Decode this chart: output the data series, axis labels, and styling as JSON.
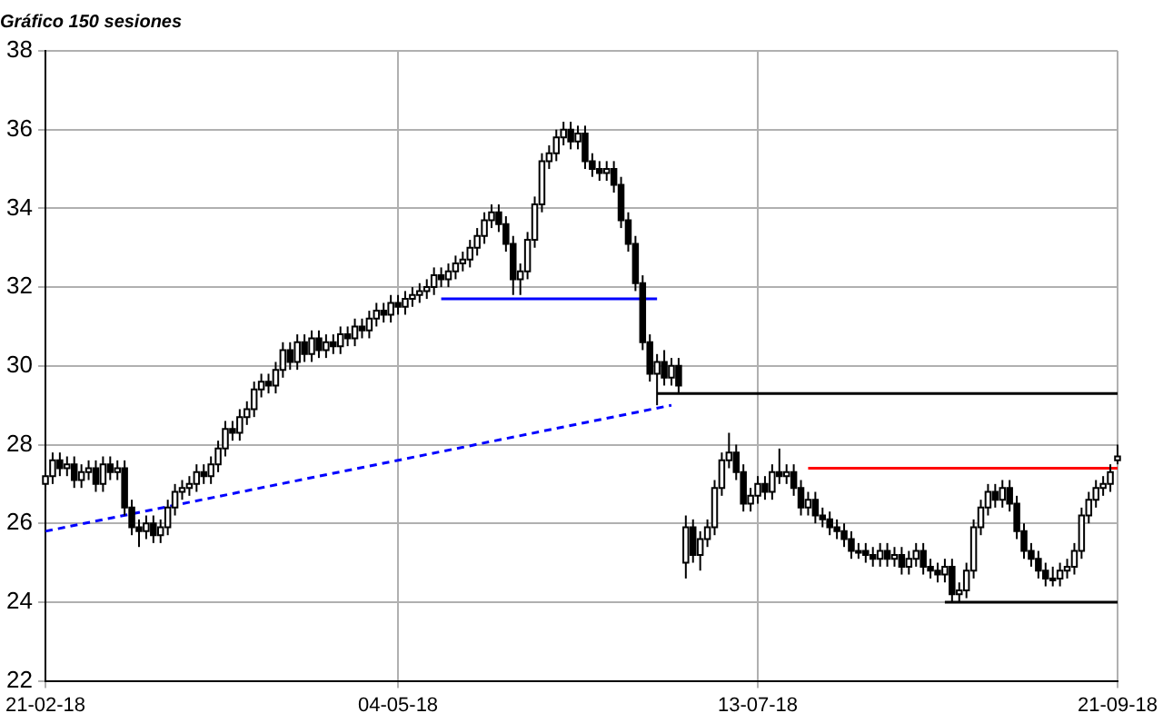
{
  "chart_data": {
    "type": "candlestick",
    "title": "Gráfico 150 sesiones",
    "categories": [
      "21-02-18",
      null,
      null,
      null,
      null,
      null,
      null,
      null,
      null,
      null,
      null,
      null,
      null,
      null,
      null,
      null,
      null,
      null,
      null,
      null,
      null,
      null,
      null,
      null,
      null,
      null,
      null,
      null,
      null,
      null,
      null,
      null,
      null,
      null,
      null,
      null,
      null,
      null,
      null,
      null,
      null,
      null,
      null,
      null,
      null,
      null,
      null,
      null,
      null,
      "04-05-18",
      null,
      null,
      null,
      null,
      null,
      null,
      null,
      null,
      null,
      null,
      null,
      null,
      null,
      null,
      null,
      null,
      null,
      null,
      null,
      null,
      null,
      null,
      null,
      null,
      null,
      null,
      null,
      null,
      null,
      null,
      null,
      null,
      null,
      null,
      null,
      null,
      null,
      null,
      null,
      null,
      null,
      null,
      null,
      null,
      null,
      null,
      null,
      null,
      null,
      "13-07-18",
      null,
      null,
      null,
      null,
      null,
      null,
      null,
      null,
      null,
      null,
      null,
      null,
      null,
      null,
      null,
      null,
      null,
      null,
      null,
      null,
      null,
      null,
      null,
      null,
      null,
      null,
      null,
      null,
      null,
      null,
      null,
      null,
      null,
      null,
      null,
      null,
      null,
      null,
      null,
      null,
      null,
      null,
      null,
      null,
      null,
      null,
      null,
      null,
      null,
      "21-09-18"
    ],
    "ohlc": [
      [
        27.0,
        27.4,
        26.8,
        27.2
      ],
      [
        27.2,
        27.8,
        27.0,
        27.6
      ],
      [
        27.6,
        27.8,
        27.2,
        27.4
      ],
      [
        27.4,
        27.7,
        27.2,
        27.5
      ],
      [
        27.5,
        27.7,
        26.9,
        27.1
      ],
      [
        27.1,
        27.5,
        26.9,
        27.3
      ],
      [
        27.3,
        27.6,
        27.1,
        27.4
      ],
      [
        27.4,
        27.6,
        26.8,
        27.0
      ],
      [
        27.0,
        27.7,
        26.8,
        27.5
      ],
      [
        27.5,
        27.7,
        27.1,
        27.3
      ],
      [
        27.3,
        27.6,
        27.1,
        27.4
      ],
      [
        27.4,
        27.6,
        26.2,
        26.4
      ],
      [
        26.4,
        26.6,
        25.7,
        25.9
      ],
      [
        25.9,
        26.1,
        25.4,
        25.8
      ],
      [
        25.8,
        26.2,
        25.6,
        26.0
      ],
      [
        26.0,
        26.2,
        25.5,
        25.7
      ],
      [
        25.7,
        26.1,
        25.5,
        25.9
      ],
      [
        25.9,
        26.6,
        25.7,
        26.4
      ],
      [
        26.4,
        27.0,
        26.2,
        26.8
      ],
      [
        26.8,
        27.1,
        26.6,
        26.9
      ],
      [
        26.9,
        27.2,
        26.7,
        27.0
      ],
      [
        27.0,
        27.5,
        26.8,
        27.3
      ],
      [
        27.3,
        27.5,
        27.0,
        27.2
      ],
      [
        27.2,
        27.7,
        27.0,
        27.5
      ],
      [
        27.5,
        28.1,
        27.3,
        27.9
      ],
      [
        27.9,
        28.6,
        27.7,
        28.4
      ],
      [
        28.4,
        28.6,
        28.1,
        28.3
      ],
      [
        28.3,
        28.9,
        28.1,
        28.7
      ],
      [
        28.7,
        29.1,
        28.5,
        28.9
      ],
      [
        28.9,
        29.6,
        28.7,
        29.4
      ],
      [
        29.4,
        29.8,
        29.2,
        29.6
      ],
      [
        29.6,
        29.8,
        29.3,
        29.5
      ],
      [
        29.5,
        30.1,
        29.3,
        29.9
      ],
      [
        29.9,
        30.6,
        29.7,
        30.4
      ],
      [
        30.4,
        30.6,
        29.9,
        30.1
      ],
      [
        30.1,
        30.8,
        29.9,
        30.6
      ],
      [
        30.6,
        30.8,
        30.1,
        30.3
      ],
      [
        30.3,
        30.9,
        30.1,
        30.7
      ],
      [
        30.7,
        30.9,
        30.2,
        30.4
      ],
      [
        30.4,
        30.8,
        30.2,
        30.6
      ],
      [
        30.6,
        30.8,
        30.3,
        30.5
      ],
      [
        30.5,
        31.0,
        30.3,
        30.8
      ],
      [
        30.8,
        31.0,
        30.5,
        30.7
      ],
      [
        30.7,
        31.2,
        30.5,
        31.0
      ],
      [
        31.0,
        31.2,
        30.7,
        30.9
      ],
      [
        30.9,
        31.4,
        30.7,
        31.2
      ],
      [
        31.2,
        31.6,
        31.0,
        31.4
      ],
      [
        31.4,
        31.6,
        31.1,
        31.3
      ],
      [
        31.3,
        31.8,
        31.1,
        31.6
      ],
      [
        31.6,
        31.8,
        31.3,
        31.5
      ],
      [
        31.5,
        31.9,
        31.3,
        31.7
      ],
      [
        31.7,
        32.0,
        31.5,
        31.8
      ],
      [
        31.8,
        32.1,
        31.6,
        31.9
      ],
      [
        31.9,
        32.2,
        31.7,
        32.0
      ],
      [
        32.0,
        32.5,
        31.8,
        32.3
      ],
      [
        32.3,
        32.5,
        32.0,
        32.2
      ],
      [
        32.2,
        32.6,
        32.0,
        32.4
      ],
      [
        32.4,
        32.8,
        32.2,
        32.6
      ],
      [
        32.6,
        32.9,
        32.4,
        32.7
      ],
      [
        32.7,
        33.2,
        32.5,
        33.0
      ],
      [
        33.0,
        33.5,
        32.8,
        33.3
      ],
      [
        33.3,
        33.9,
        33.1,
        33.7
      ],
      [
        33.7,
        34.1,
        33.5,
        33.9
      ],
      [
        33.9,
        34.1,
        33.4,
        33.6
      ],
      [
        33.6,
        33.8,
        32.9,
        33.1
      ],
      [
        33.1,
        33.3,
        31.8,
        32.2
      ],
      [
        32.2,
        32.6,
        31.8,
        32.4
      ],
      [
        32.4,
        33.4,
        32.2,
        33.2
      ],
      [
        33.2,
        34.3,
        33.0,
        34.1
      ],
      [
        34.1,
        35.4,
        33.9,
        35.2
      ],
      [
        35.2,
        35.6,
        35.0,
        35.4
      ],
      [
        35.4,
        36.0,
        35.2,
        35.8
      ],
      [
        35.8,
        36.2,
        35.6,
        36.0
      ],
      [
        36.0,
        36.2,
        35.5,
        35.7
      ],
      [
        35.7,
        36.1,
        35.5,
        35.9
      ],
      [
        35.9,
        36.1,
        35.0,
        35.2
      ],
      [
        35.2,
        35.4,
        34.8,
        35.0
      ],
      [
        35.0,
        35.2,
        34.7,
        34.9
      ],
      [
        34.9,
        35.2,
        34.7,
        35.0
      ],
      [
        35.0,
        35.2,
        34.4,
        34.6
      ],
      [
        34.6,
        34.8,
        33.5,
        33.7
      ],
      [
        33.7,
        33.9,
        32.9,
        33.1
      ],
      [
        33.1,
        33.3,
        31.9,
        32.1
      ],
      [
        32.1,
        32.3,
        30.4,
        30.6
      ],
      [
        30.6,
        30.8,
        29.6,
        29.8
      ],
      [
        29.8,
        30.3,
        29.0,
        30.1
      ],
      [
        30.1,
        30.4,
        29.5,
        29.7
      ],
      [
        29.7,
        30.2,
        29.5,
        30.0
      ],
      [
        30.0,
        30.2,
        29.3,
        29.5
      ],
      [
        25.0,
        26.2,
        24.6,
        25.9
      ],
      [
        25.9,
        26.1,
        25.0,
        25.2
      ],
      [
        25.2,
        25.8,
        24.8,
        25.6
      ],
      [
        25.6,
        26.1,
        25.4,
        25.9
      ],
      [
        25.9,
        27.1,
        25.7,
        26.9
      ],
      [
        26.9,
        27.8,
        26.7,
        27.6
      ],
      [
        27.6,
        28.3,
        27.4,
        27.8
      ],
      [
        27.8,
        28.0,
        27.1,
        27.3
      ],
      [
        27.3,
        27.5,
        26.3,
        26.5
      ],
      [
        26.5,
        26.9,
        26.3,
        26.7
      ],
      [
        26.7,
        27.2,
        26.5,
        27.0
      ],
      [
        27.0,
        27.2,
        26.6,
        26.8
      ],
      [
        26.8,
        27.5,
        26.6,
        27.3
      ],
      [
        27.3,
        27.9,
        27.0,
        27.2
      ],
      [
        27.2,
        27.5,
        27.0,
        27.3
      ],
      [
        27.3,
        27.5,
        26.7,
        26.9
      ],
      [
        26.9,
        27.1,
        26.2,
        26.4
      ],
      [
        26.4,
        26.8,
        26.2,
        26.6
      ],
      [
        26.6,
        26.8,
        26.0,
        26.2
      ],
      [
        26.2,
        26.4,
        25.9,
        26.1
      ],
      [
        26.1,
        26.3,
        25.7,
        25.9
      ],
      [
        25.9,
        26.1,
        25.6,
        25.8
      ],
      [
        25.8,
        26.0,
        25.4,
        25.6
      ],
      [
        25.6,
        25.8,
        25.1,
        25.3
      ],
      [
        25.3,
        25.5,
        25.1,
        25.3
      ],
      [
        25.3,
        25.5,
        25.0,
        25.2
      ],
      [
        25.2,
        25.4,
        24.9,
        25.1
      ],
      [
        25.1,
        25.5,
        24.9,
        25.3
      ],
      [
        25.3,
        25.5,
        24.9,
        25.1
      ],
      [
        25.1,
        25.4,
        24.9,
        25.2
      ],
      [
        25.2,
        25.4,
        24.7,
        24.9
      ],
      [
        24.9,
        25.3,
        24.7,
        25.1
      ],
      [
        25.1,
        25.5,
        24.9,
        25.3
      ],
      [
        25.3,
        25.5,
        24.7,
        24.9
      ],
      [
        24.9,
        25.1,
        24.6,
        24.8
      ],
      [
        24.8,
        25.0,
        24.5,
        24.7
      ],
      [
        24.7,
        25.1,
        24.5,
        24.9
      ],
      [
        24.9,
        25.1,
        24.0,
        24.2
      ],
      [
        24.2,
        24.5,
        24.0,
        24.3
      ],
      [
        24.3,
        25.0,
        24.1,
        24.8
      ],
      [
        24.8,
        26.1,
        24.6,
        25.9
      ],
      [
        25.9,
        26.6,
        25.7,
        26.4
      ],
      [
        26.4,
        27.0,
        26.2,
        26.8
      ],
      [
        26.8,
        27.0,
        26.4,
        26.6
      ],
      [
        26.6,
        27.1,
        26.4,
        26.9
      ],
      [
        26.9,
        27.1,
        26.3,
        26.5
      ],
      [
        26.5,
        26.7,
        25.6,
        25.8
      ],
      [
        25.8,
        26.0,
        25.1,
        25.3
      ],
      [
        25.3,
        25.5,
        24.9,
        25.1
      ],
      [
        25.1,
        25.3,
        24.6,
        24.8
      ],
      [
        24.8,
        25.0,
        24.4,
        24.6
      ],
      [
        24.6,
        24.9,
        24.4,
        24.6
      ],
      [
        24.6,
        25.0,
        24.4,
        24.8
      ],
      [
        24.8,
        25.1,
        24.6,
        24.9
      ],
      [
        24.9,
        25.5,
        24.7,
        25.3
      ],
      [
        25.3,
        26.4,
        25.1,
        26.2
      ],
      [
        26.2,
        26.8,
        26.0,
        26.6
      ],
      [
        26.6,
        27.1,
        26.4,
        26.9
      ],
      [
        26.9,
        27.2,
        26.7,
        27.0
      ],
      [
        27.0,
        27.5,
        26.8,
        27.3
      ],
      [
        27.6,
        28.0,
        27.5,
        27.7
      ]
    ],
    "series": [
      {
        "type": "line",
        "color": "#0000ff",
        "line_style": "solid",
        "values": [
          null,
          null,
          null,
          null,
          null,
          null,
          null,
          null,
          null,
          null,
          null,
          null,
          null,
          null,
          null,
          null,
          null,
          null,
          null,
          null,
          null,
          null,
          null,
          null,
          null,
          null,
          null,
          null,
          null,
          null,
          null,
          null,
          null,
          null,
          null,
          null,
          null,
          null,
          null,
          null,
          null,
          null,
          null,
          null,
          null,
          null,
          null,
          null,
          null,
          null,
          null,
          null,
          null,
          null,
          null,
          31.7,
          null,
          null,
          null,
          null,
          null,
          null,
          null,
          null,
          null,
          null,
          null,
          null,
          null,
          null,
          null,
          null,
          null,
          null,
          null,
          null,
          null,
          null,
          null,
          null,
          null,
          null,
          null,
          null,
          null,
          31.7,
          null,
          null,
          null,
          null,
          null,
          null,
          null,
          null,
          null,
          null,
          null,
          null,
          null,
          null,
          null,
          null,
          null,
          null,
          null,
          null,
          null,
          null,
          null,
          null,
          null,
          null,
          null,
          null,
          null,
          null,
          null,
          null,
          null,
          null,
          null,
          null,
          null,
          null,
          null,
          null,
          null,
          null,
          null,
          null,
          null,
          null,
          null,
          null,
          null,
          null,
          null,
          null,
          null,
          null,
          null,
          null,
          null,
          null,
          null,
          null,
          null,
          null,
          null,
          null
        ]
      },
      {
        "type": "line",
        "color": "#000000",
        "line_style": "solid",
        "values": [
          null,
          null,
          null,
          null,
          null,
          null,
          null,
          null,
          null,
          null,
          null,
          null,
          null,
          null,
          null,
          null,
          null,
          null,
          null,
          null,
          null,
          null,
          null,
          null,
          null,
          null,
          null,
          null,
          null,
          null,
          null,
          null,
          null,
          null,
          null,
          null,
          null,
          null,
          null,
          null,
          null,
          null,
          null,
          null,
          null,
          null,
          null,
          null,
          null,
          null,
          null,
          null,
          null,
          null,
          null,
          null,
          null,
          null,
          null,
          null,
          null,
          null,
          null,
          null,
          null,
          null,
          null,
          null,
          null,
          null,
          null,
          null,
          null,
          null,
          null,
          null,
          null,
          null,
          null,
          null,
          null,
          null,
          null,
          null,
          null,
          29.3,
          null,
          null,
          null,
          null,
          null,
          null,
          null,
          null,
          null,
          null,
          null,
          null,
          null,
          null,
          null,
          null,
          null,
          null,
          null,
          null,
          null,
          null,
          null,
          null,
          null,
          null,
          null,
          null,
          null,
          null,
          null,
          null,
          null,
          null,
          null,
          null,
          null,
          null,
          null,
          null,
          null,
          null,
          null,
          null,
          null,
          null,
          null,
          null,
          null,
          null,
          null,
          null,
          null,
          null,
          null,
          null,
          null,
          null,
          null,
          null,
          null,
          null,
          null,
          29.3
        ]
      },
      {
        "type": "line",
        "color": "#ff0000",
        "line_style": "solid",
        "values": [
          null,
          null,
          null,
          null,
          null,
          null,
          null,
          null,
          null,
          null,
          null,
          null,
          null,
          null,
          null,
          null,
          null,
          null,
          null,
          null,
          null,
          null,
          null,
          null,
          null,
          null,
          null,
          null,
          null,
          null,
          null,
          null,
          null,
          null,
          null,
          null,
          null,
          null,
          null,
          null,
          null,
          null,
          null,
          null,
          null,
          null,
          null,
          null,
          null,
          null,
          null,
          null,
          null,
          null,
          null,
          null,
          null,
          null,
          null,
          null,
          null,
          null,
          null,
          null,
          null,
          null,
          null,
          null,
          null,
          null,
          null,
          null,
          null,
          null,
          null,
          null,
          null,
          null,
          null,
          null,
          null,
          null,
          null,
          null,
          null,
          null,
          null,
          null,
          null,
          null,
          null,
          null,
          null,
          null,
          null,
          null,
          null,
          null,
          null,
          null,
          null,
          null,
          null,
          null,
          null,
          null,
          27.4,
          null,
          null,
          null,
          null,
          null,
          null,
          null,
          null,
          null,
          null,
          null,
          null,
          null,
          null,
          null,
          null,
          null,
          null,
          null,
          null,
          null,
          null,
          null,
          null,
          null,
          null,
          null,
          null,
          null,
          null,
          null,
          null,
          null,
          null,
          null,
          null,
          null,
          null,
          null,
          null,
          null,
          null,
          27.4
        ]
      },
      {
        "type": "line",
        "color": "#000000",
        "line_style": "solid",
        "values": [
          null,
          null,
          null,
          null,
          null,
          null,
          null,
          null,
          null,
          null,
          null,
          null,
          null,
          null,
          null,
          null,
          null,
          null,
          null,
          null,
          null,
          null,
          null,
          null,
          null,
          null,
          null,
          null,
          null,
          null,
          null,
          null,
          null,
          null,
          null,
          null,
          null,
          null,
          null,
          null,
          null,
          null,
          null,
          null,
          null,
          null,
          null,
          null,
          null,
          null,
          null,
          null,
          null,
          null,
          null,
          null,
          null,
          null,
          null,
          null,
          null,
          null,
          null,
          null,
          null,
          null,
          null,
          null,
          null,
          null,
          null,
          null,
          null,
          null,
          null,
          null,
          null,
          null,
          null,
          null,
          null,
          null,
          null,
          null,
          null,
          null,
          null,
          null,
          null,
          null,
          null,
          null,
          null,
          null,
          null,
          null,
          null,
          null,
          null,
          null,
          null,
          null,
          null,
          null,
          null,
          null,
          null,
          null,
          null,
          null,
          null,
          null,
          null,
          null,
          null,
          null,
          null,
          null,
          null,
          null,
          null,
          null,
          null,
          null,
          null,
          24.0,
          null,
          null,
          null,
          null,
          null,
          null,
          null,
          null,
          null,
          null,
          null,
          null,
          null,
          null,
          null,
          null,
          null,
          null,
          null,
          null,
          null,
          null,
          null,
          24.0
        ]
      },
      {
        "type": "line",
        "color": "#0000ff",
        "line_style": "dashed",
        "values": [
          25.8,
          null,
          null,
          null,
          null,
          null,
          null,
          null,
          null,
          null,
          null,
          null,
          null,
          null,
          null,
          null,
          null,
          null,
          null,
          null,
          null,
          null,
          null,
          null,
          null,
          null,
          null,
          null,
          null,
          null,
          null,
          null,
          null,
          null,
          null,
          null,
          null,
          null,
          null,
          null,
          null,
          null,
          null,
          null,
          null,
          null,
          null,
          null,
          null,
          null,
          null,
          null,
          null,
          null,
          null,
          null,
          null,
          null,
          null,
          null,
          null,
          null,
          null,
          null,
          null,
          null,
          null,
          null,
          null,
          null,
          null,
          null,
          null,
          null,
          null,
          null,
          null,
          null,
          null,
          null,
          null,
          null,
          null,
          null,
          null,
          null,
          null,
          29.0,
          null,
          null,
          null,
          null,
          null,
          null,
          null,
          null,
          null,
          null,
          null,
          null,
          null,
          null,
          null,
          null,
          null,
          null,
          null,
          null,
          null,
          null,
          null,
          null,
          null,
          null,
          null,
          null,
          null,
          null,
          null,
          null,
          null,
          null,
          null,
          null,
          null,
          null,
          null,
          null,
          null,
          null,
          null,
          null,
          null,
          null,
          null,
          null,
          null,
          null,
          null,
          null,
          null,
          null,
          null,
          null,
          null,
          null,
          null,
          null,
          null,
          null
        ]
      }
    ],
    "ylim": [
      22,
      38
    ],
    "yticks": [
      22,
      24,
      26,
      28,
      30,
      32,
      34,
      36,
      38
    ],
    "grid": true,
    "legend": false
  }
}
